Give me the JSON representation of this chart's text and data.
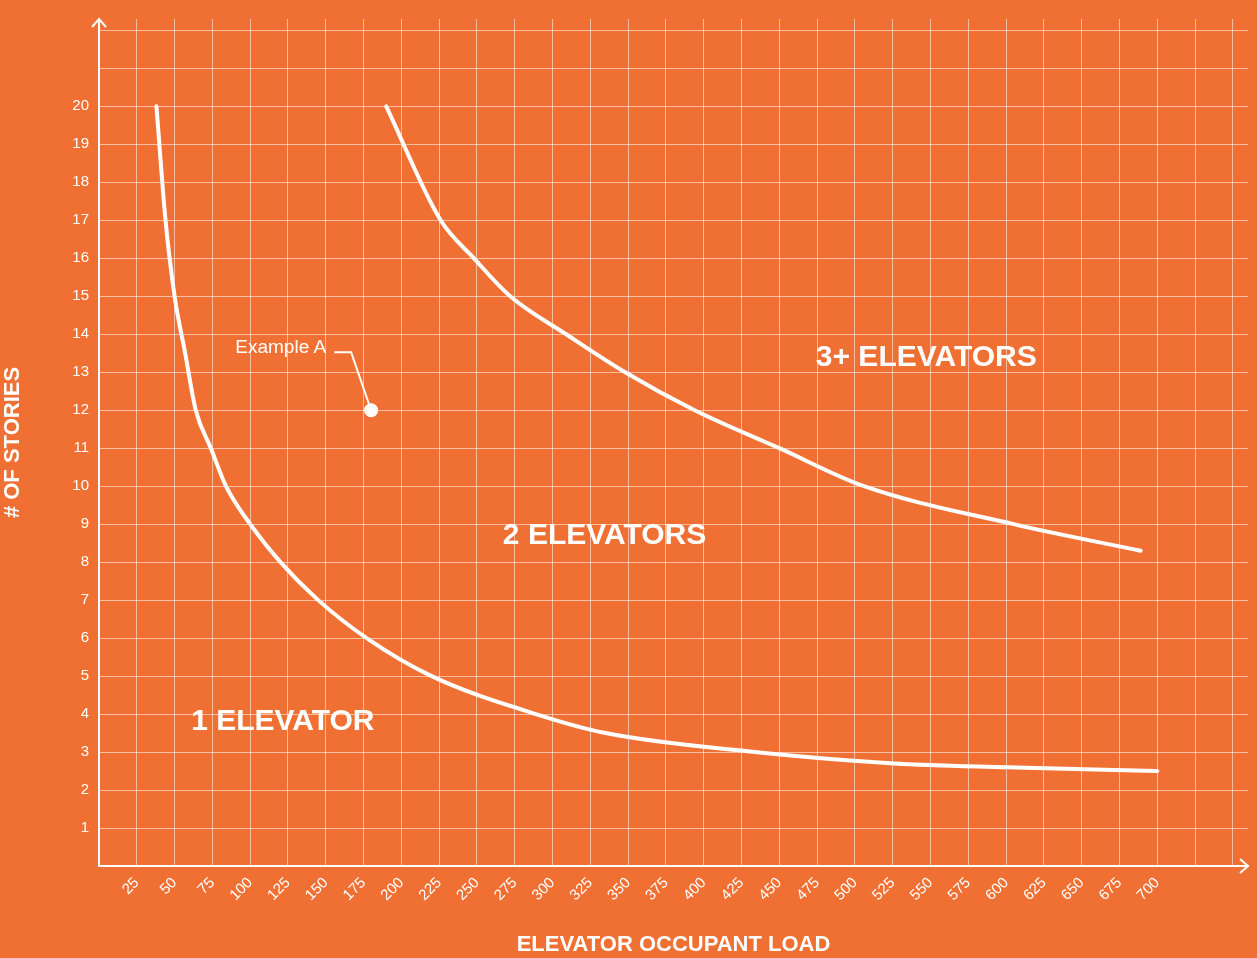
{
  "chart_data": {
    "type": "line",
    "xlabel": "ELEVATOR OCCUPANT LOAD",
    "ylabel": "# OF STORIES",
    "xlim": [
      0,
      760
    ],
    "ylim": [
      0,
      22.3
    ],
    "xticks": [
      25,
      50,
      75,
      100,
      125,
      150,
      175,
      200,
      225,
      250,
      275,
      300,
      325,
      350,
      375,
      400,
      425,
      450,
      475,
      500,
      525,
      550,
      575,
      600,
      625,
      650,
      675,
      700,
      {
        "value": 725,
        "label": null
      },
      {
        "value": 750,
        "label": null
      }
    ],
    "yticks": [
      1,
      2,
      3,
      4,
      5,
      6,
      7,
      8,
      9,
      10,
      11,
      12,
      13,
      14,
      15,
      16,
      17,
      18,
      19,
      20,
      {
        "value": 21,
        "label": null
      },
      {
        "value": 22,
        "label": null
      }
    ],
    "grid": true,
    "marker": "none",
    "line_style": "solid",
    "series": [
      {
        "color": "#ffffff",
        "x": [
          38,
          44,
          50,
          57,
          64,
          74,
          84,
          100,
          120,
          145,
          177,
          220,
          289,
          335,
          434,
          526,
          600,
          700
        ],
        "values": [
          20,
          17,
          15,
          13.5,
          12,
          11,
          10,
          9,
          8,
          7,
          6,
          5,
          4,
          3.5,
          3,
          2.7,
          2.6,
          2.5
        ]
      },
      {
        "color": "#ffffff",
        "x": [
          190,
          226,
          248,
          272,
          309,
          348,
          394,
          450,
          506,
          605,
          689
        ],
        "values": [
          20,
          17,
          16,
          15,
          14,
          13,
          12,
          11,
          10,
          9,
          8.3
        ]
      },
      {
        "type": "scatter",
        "color": "#ffffff",
        "marker": "circle",
        "x": [
          180
        ],
        "values": [
          12
        ]
      }
    ],
    "annotations": [
      {
        "text": "Example A",
        "x": 180,
        "y": 12
      },
      "1 ELEVATOR",
      "2 ELEVATORS",
      "3+ ELEVATORS"
    ]
  }
}
